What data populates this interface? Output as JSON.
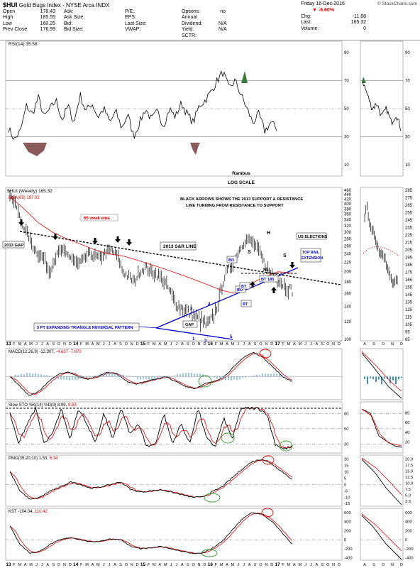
{
  "header": {
    "symbol": "$HUI",
    "name": "Gold Bugs Index - NYSE Arca INDX",
    "watermark": "© StockCharts.com",
    "date_line": "Friday   16-Dec-2016",
    "quotes_left": [
      [
        "Open",
        "178.43"
      ],
      [
        "High",
        "185.55"
      ],
      [
        "Low",
        "160.25"
      ],
      [
        "Prev Close",
        "176.99"
      ]
    ],
    "quotes_mid": [
      [
        "Ask:",
        ""
      ],
      [
        "Ask Size:",
        ""
      ],
      [
        "Bid:",
        ""
      ],
      [
        "Bid Size:",
        ""
      ]
    ],
    "quotes_mid2": [
      [
        "P/E:",
        ""
      ],
      [
        "EPS:",
        ""
      ],
      [
        "Last Size:",
        ""
      ],
      [
        "VWAP:",
        ""
      ]
    ],
    "quotes_mid3": [
      [
        "Options:",
        "no"
      ],
      [
        "Annual Dividend:",
        "N/A"
      ],
      [
        "Yield:",
        "N/A"
      ],
      [
        "SCTR:",
        ""
      ]
    ],
    "quotes_right": [
      [
        "Chg:",
        "-11.68"
      ],
      [
        "Last:",
        "165.32"
      ],
      [
        "Volume:",
        "0"
      ]
    ],
    "chg_pct": "▼ -6.60%"
  },
  "rsi_panel": {
    "label": "RSI(14) 35.58",
    "ticks": [
      "90",
      "70",
      "50",
      "30",
      "10"
    ],
    "notes": [
      "Rambus",
      "LOG SCALE"
    ]
  },
  "price_panel": {
    "label": "$HUI (Weekly) 165.32",
    "ema_label": "EMA(65) 197.02",
    "ticks": [
      "460",
      "440",
      "420",
      "400",
      "380",
      "360",
      "340",
      "320",
      "300",
      "280",
      "260",
      "240",
      "220",
      "200",
      "180",
      "160",
      "140",
      "120",
      "100"
    ],
    "right_ticks": [
      "285",
      "275",
      "265",
      "255",
      "245",
      "235",
      "225",
      "215",
      "205",
      "195",
      "185",
      "175",
      "165",
      "155",
      "145",
      "135",
      "125",
      "115",
      "105",
      "95",
      "85"
    ],
    "annotations": {
      "arrows_note": "BLACK ARROWS SHOWS THE 2013 SUPPORT & RESISTANCE",
      "arrows_note2": "LINE TURNING FROM RESISTANCE TO SUPPORT",
      "ema_note": "65 week ema",
      "gap_2013": "2013 GAP",
      "sr_line": "2013 S&R LINE",
      "triangle": "5 PT EXPANDING TRIANGLE REVERSAL PATTERN",
      "gap": "GAP",
      "us_elections": "US ELECTIONS",
      "top_rail": "TOP RAIL",
      "extension": "EXTENSION",
      "bt185": "BT 185",
      "h": "H",
      "s1": "S",
      "s2": "S",
      "nl": "NL",
      "bo1": "BO",
      "bo2": "BO",
      "bt1": "BT",
      "bt2": "BT",
      "pt1": "1",
      "pt2": "2",
      "pt3": "3",
      "pt4": "4",
      "pt5": "5"
    }
  },
  "x_axis": [
    "13",
    "F",
    "M",
    "A",
    "M",
    "J",
    "J",
    "A",
    "S",
    "O",
    "N",
    "D",
    "14",
    "F",
    "M",
    "A",
    "M",
    "J",
    "J",
    "A",
    "S",
    "O",
    "N",
    "D",
    "15",
    "F",
    "M",
    "A",
    "M",
    "J",
    "J",
    "A",
    "S",
    "O",
    "N",
    "D",
    "16",
    "F",
    "M",
    "A",
    "M",
    "J",
    "J",
    "A",
    "S",
    "O",
    "N",
    "D",
    "17",
    "F",
    "M",
    "A",
    "M",
    "J",
    "J",
    "A",
    "S",
    "O",
    "N",
    "D"
  ],
  "x_axis_right": [
    "A",
    "S",
    "O",
    "N",
    "D"
  ],
  "macd_panel": {
    "label": "MACD(12,26,9)",
    "v1": "-12.307",
    "v2": "-4.637",
    "v3": "-7.670"
  },
  "sto_panel": {
    "label": "Slow STO %K(14) %D(3)",
    "v1": "8.99",
    "v2": "9.83",
    "ticks": [
      "80",
      "50",
      "20"
    ],
    "right_ticks": [
      "80",
      "60",
      "40",
      "20"
    ]
  },
  "pmo_panel": {
    "label": "PMO(35,20,10)",
    "v1": "1.53",
    "v2": "6.34",
    "ticks": [
      "20",
      "15",
      "10",
      "5",
      "0",
      "-5",
      "-10",
      "-15"
    ],
    "right_ticks": [
      "20.0",
      "17.5",
      "15.0",
      "12.5",
      "10.0",
      "7.5",
      "5.0",
      "2.5"
    ]
  },
  "kst_panel": {
    "label": "KST",
    "v1": "-104.04",
    "v2": "110.42",
    "ticks": [
      "600",
      "400",
      "200",
      "0",
      "-200",
      "-400"
    ],
    "right_ticks": [
      "600",
      "400",
      "200",
      "0",
      "-200",
      "-400"
    ]
  },
  "colors": {
    "red": "#e00000",
    "blue": "#0000cc",
    "green": "#2a9a2a",
    "hist": "#3a8fc8",
    "rsiFill": "#8b5a5a",
    "rsiGreen": "#3a7a3a"
  },
  "chart_data": {
    "type": "line",
    "series": [
      {
        "name": "$HUI (Weekly)",
        "x": [
          "13-01",
          "13-04",
          "13-07",
          "13-10",
          "14-01",
          "14-04",
          "14-07",
          "14-10",
          "15-01",
          "15-04",
          "15-07",
          "15-10",
          "16-01",
          "16-04",
          "16-07",
          "16-08",
          "16-10",
          "16-12"
        ],
        "values": [
          440,
          330,
          230,
          225,
          215,
          240,
          240,
          195,
          210,
          190,
          150,
          130,
          115,
          190,
          270,
          285,
          190,
          165
        ]
      },
      {
        "name": "EMA(65)",
        "x": [
          "13-01",
          "13-07",
          "14-01",
          "14-07",
          "15-01",
          "15-07",
          "16-01",
          "16-07",
          "16-12"
        ],
        "values": [
          420,
          340,
          280,
          240,
          210,
          180,
          160,
          185,
          197.02
        ]
      }
    ]
  }
}
